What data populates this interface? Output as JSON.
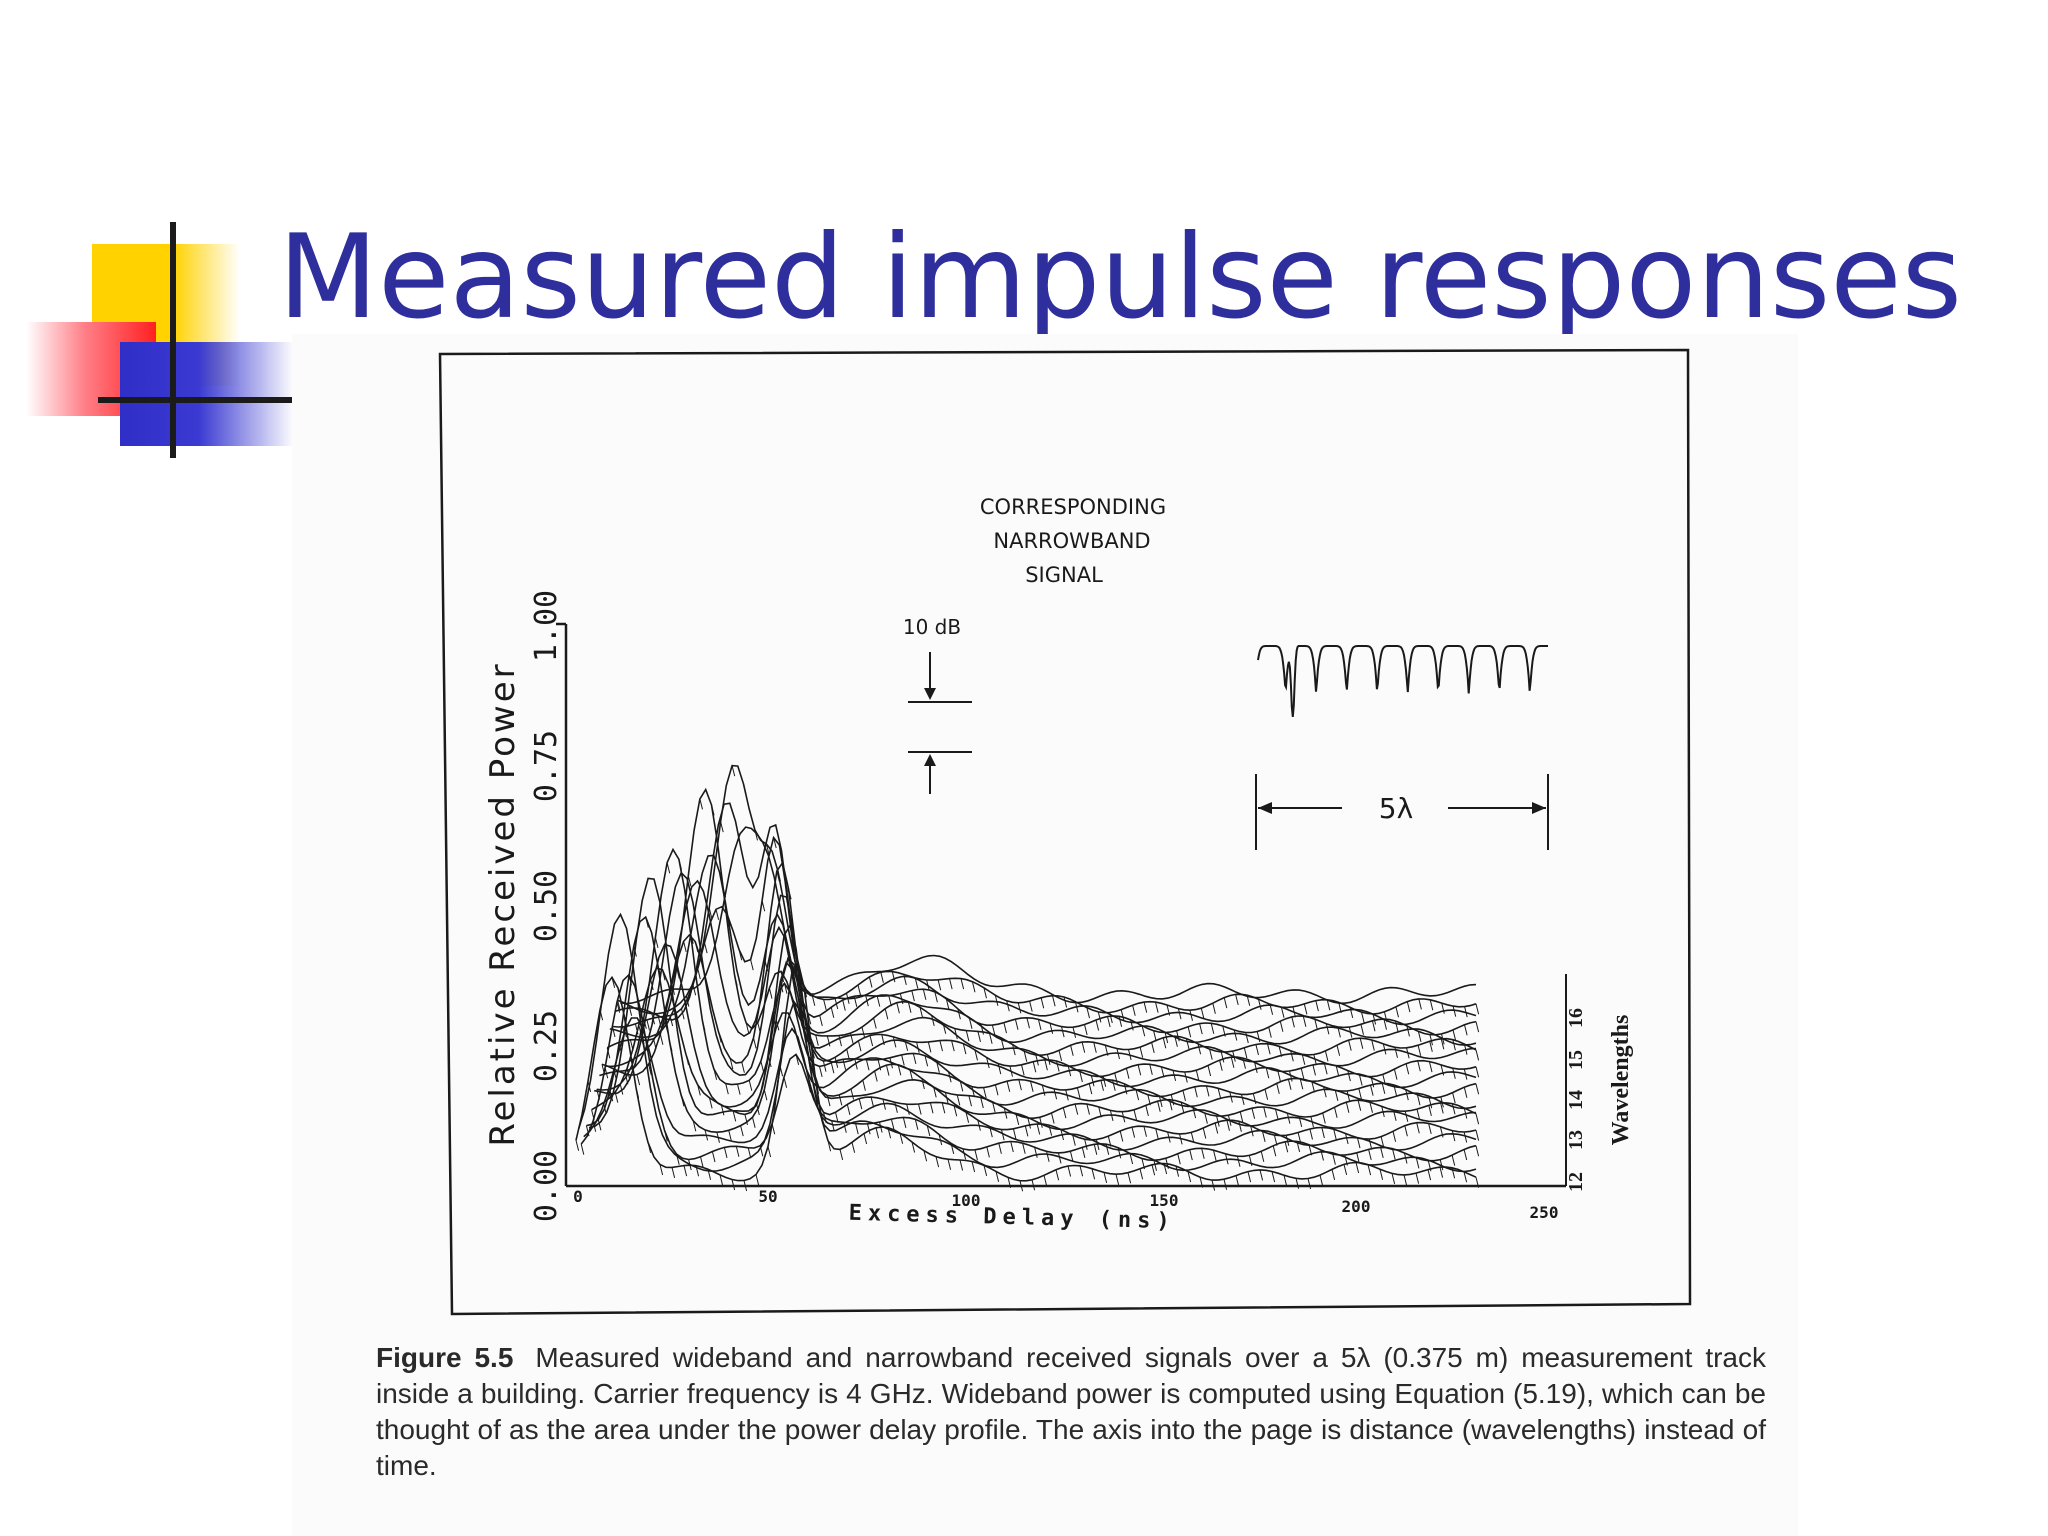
{
  "slide": {
    "title": "Measured impulse responses"
  },
  "figure": {
    "y_axis_label": "Relative Received Power",
    "y_ticks": [
      "0.00",
      "0.25",
      "0.50",
      "0.75",
      "1.00"
    ],
    "x_axis_label": "Excess Delay (ns)",
    "x_ticks": [
      "0",
      "50",
      "100",
      "150",
      "200",
      "250"
    ],
    "depth_axis_label": "Wavelengths",
    "depth_ticks": [
      "12",
      "13",
      "14",
      "15",
      "16"
    ],
    "inset": {
      "title_lines": [
        "CORRESPONDING",
        "NARROWBAND",
        "SIGNAL"
      ],
      "scale_label": "10 dB",
      "span_label": "5λ"
    }
  },
  "caption": {
    "label": "Figure 5.5",
    "text": "Measured wideband and narrowband received signals over a 5λ (0.375 m) measurement track inside a building. Carrier frequency is 4 GHz. Wideband power is computed using Equation (5.19), which can be thought of as the area under the power delay profile. The axis into the page is distance (wavelengths) instead of time."
  },
  "colors": {
    "title": "#2e2e9c",
    "ink": "#1a1a1a",
    "logo_yellow": "#ffd200",
    "logo_red": "#ff2020",
    "logo_blue": "#3a3ad2"
  }
}
